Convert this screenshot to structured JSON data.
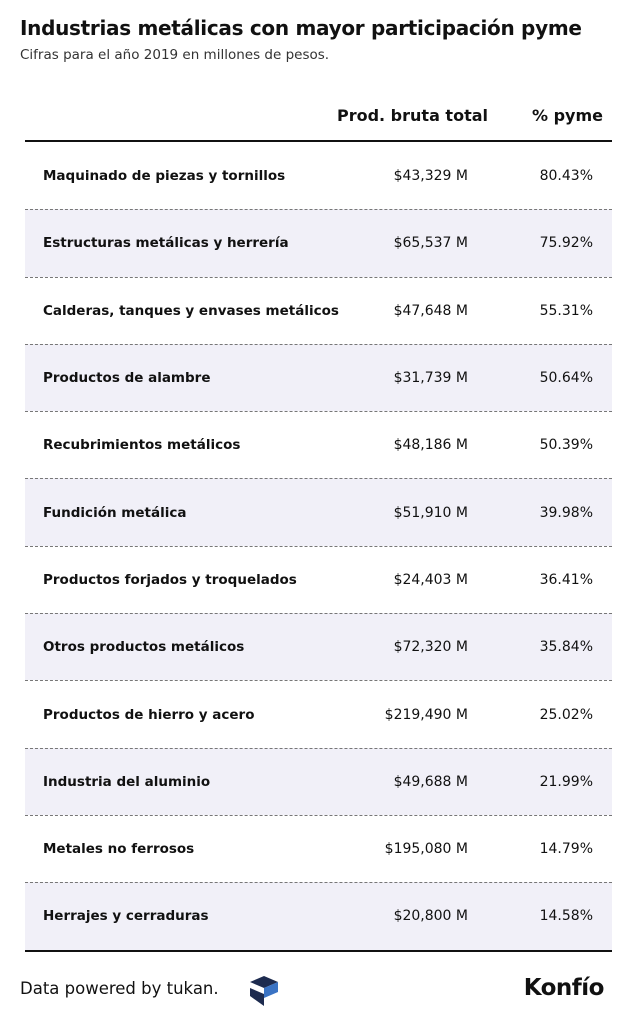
{
  "header": {
    "title": "Industrias metálicas con mayor participación pyme",
    "subtitle": "Cifras para el año 2019 en millones de pesos."
  },
  "table": {
    "columns": [
      "Prod. bruta total",
      "% pyme"
    ],
    "rows": [
      [
        "Maquinado de piezas y tornillos",
        "$43,329 M",
        "80.43%"
      ],
      [
        "Estructuras metálicas y herrería",
        "$65,537 M",
        "75.92%"
      ],
      [
        "Calderas, tanques y envases metálicos",
        "$47,648 M",
        "55.31%"
      ],
      [
        "Productos de alambre",
        "$31,739 M",
        "50.64%"
      ],
      [
        "Recubrimientos metálicos",
        "$48,186 M",
        "50.39%"
      ],
      [
        "Fundición metálica",
        "$51,910 M",
        "39.98%"
      ],
      [
        "Productos forjados y troquelados",
        "$24,403 M",
        "36.41%"
      ],
      [
        "Otros productos metálicos",
        "$72,320 M",
        "35.84%"
      ],
      [
        "Productos de hierro y acero",
        "$219,490 M",
        "25.02%"
      ],
      [
        "Industria del aluminio",
        "$49,688 M",
        "21.99%"
      ],
      [
        "Metales no ferrosos",
        "$195,080 M",
        "14.79%"
      ],
      [
        "Herrajes y cerraduras",
        "$20,800 M",
        "14.58%"
      ]
    ]
  },
  "footer": {
    "credit": "Data powered by tukan.",
    "brand": "Konfío"
  }
}
